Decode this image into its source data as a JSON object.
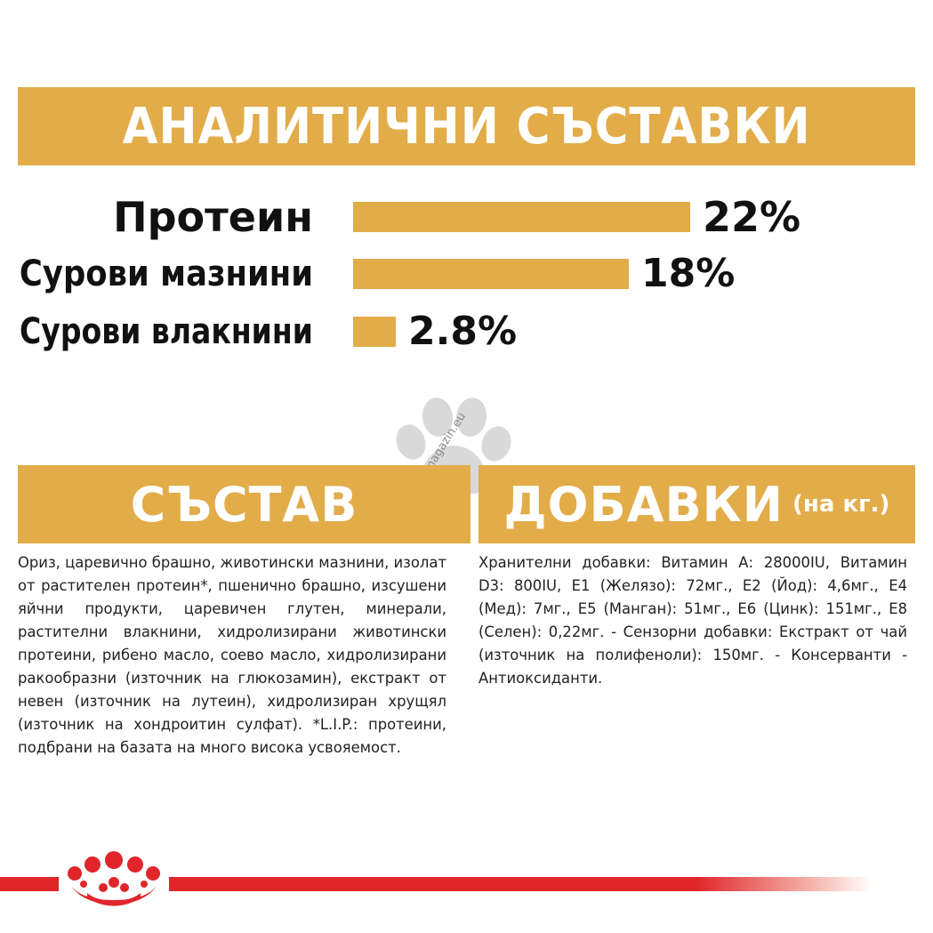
{
  "header": {
    "title": "АНАЛИТИЧНИ СЪСТАВКИ"
  },
  "analytics": [
    {
      "label": "Протеин",
      "value_text": "22%",
      "value": 22
    },
    {
      "label": "Сурови мазнини",
      "value_text": "18%",
      "value": 18
    },
    {
      "label": "Сурови влакнини",
      "value_text": "2.8%",
      "value": 2.8
    }
  ],
  "composition": {
    "title": "СЪСТАВ",
    "text": "Ориз, царевично брашно, животински мазнини, изолат от растителен протеин*, пшенично брашно, изсушени яйчни продукти, царевичен глутен, минерали, растителни влакнини, хидролизирани животински протеини, рибено масло, соево масло, хидролизирани ракообразни (източник на глюкозамин), екстракт от невен (източник на лутеин), хидролизиран хрущял (източник на хондроитин сулфат). *L.I.P.: протеини, подбрани на базата на много висока усвояемост."
  },
  "additives": {
    "title": "ДОБАВКИ",
    "unit": "(на кг.)",
    "text": "Хранителни добавки: Витамин А: 28000IU, Витамин D3: 800IU, E1 (Желязо): 72мг., E2 (Йод): 4,6мг., E4 (Мед): 7мг., E5 (Манган): 51мг., E6 (Цинк): 151мг., E8 (Селен): 0,22мг. - Сензорни добавки: Екстракт от чай (източник на полифеноли): 150мг. - Консерванти - Антиоксиданти."
  },
  "watermark": "zoomagazin.eu",
  "colors": {
    "accent": "#e2ac49",
    "brand_red": "#e0262b",
    "paw_gray": "#d9d9d9"
  },
  "icons": {
    "watermark_icon": "paw-icon",
    "brand_logo": "royal-canin-crown-icon"
  }
}
